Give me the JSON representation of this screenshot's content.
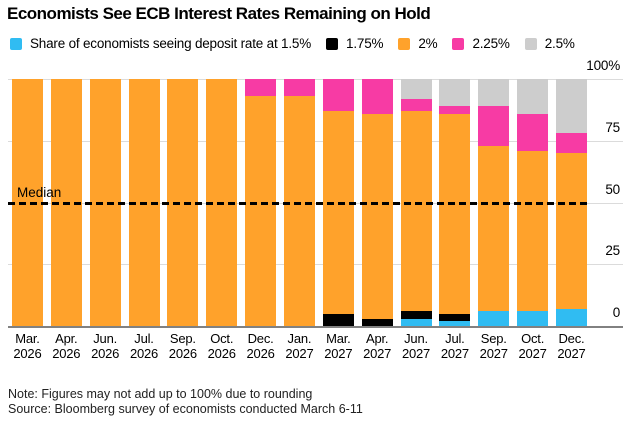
{
  "title": "Economists See ECB Interest Rates Remaining on Hold",
  "legend": {
    "items": [
      {
        "id": "rate-1-5",
        "label": "Share of economists seeing deposit rate at 1.5%",
        "color": "#30BCF2"
      },
      {
        "id": "rate-1-75",
        "label": "1.75%",
        "color": "#000000"
      },
      {
        "id": "rate-2",
        "label": "2%",
        "color": "#FFA22B"
      },
      {
        "id": "rate-2-25",
        "label": "2.25%",
        "color": "#F73BA4"
      },
      {
        "id": "rate-2-5",
        "label": "2.5%",
        "color": "#CDCDCD"
      }
    ]
  },
  "chart_data": {
    "type": "bar",
    "stacked": true,
    "unit": "percent share of economists",
    "title": "Economists See ECB Interest Rates Remaining on Hold",
    "categories": [
      {
        "month": "Mar.",
        "year": "2026"
      },
      {
        "month": "Apr.",
        "year": "2026"
      },
      {
        "month": "Jun.",
        "year": "2026"
      },
      {
        "month": "Jul.",
        "year": "2026"
      },
      {
        "month": "Sep.",
        "year": "2026"
      },
      {
        "month": "Oct.",
        "year": "2026"
      },
      {
        "month": "Dec.",
        "year": "2026"
      },
      {
        "month": "Jan.",
        "year": "2027"
      },
      {
        "month": "Mar.",
        "year": "2027"
      },
      {
        "month": "Apr.",
        "year": "2027"
      },
      {
        "month": "Jun.",
        "year": "2027"
      },
      {
        "month": "Jul.",
        "year": "2027"
      },
      {
        "month": "Sep.",
        "year": "2027"
      },
      {
        "month": "Oct.",
        "year": "2027"
      },
      {
        "month": "Dec.",
        "year": "2027"
      }
    ],
    "series": [
      {
        "name": "1.5%",
        "color": "#30BCF2",
        "values": [
          0,
          0,
          0,
          0,
          0,
          0,
          0,
          0,
          0,
          0,
          3,
          2,
          6,
          6,
          7
        ]
      },
      {
        "name": "1.75%",
        "color": "#000000",
        "values": [
          0,
          0,
          0,
          0,
          0,
          0,
          0,
          0,
          5,
          3,
          3,
          3,
          0,
          0,
          0
        ]
      },
      {
        "name": "2%",
        "color": "#FFA22B",
        "values": [
          100,
          100,
          100,
          100,
          100,
          100,
          93,
          93,
          82,
          83,
          81,
          81,
          67,
          65,
          63
        ]
      },
      {
        "name": "2.25%",
        "color": "#F73BA4",
        "values": [
          0,
          0,
          0,
          0,
          0,
          0,
          7,
          7,
          13,
          14,
          5,
          3,
          16,
          15,
          8
        ]
      },
      {
        "name": "2.5%",
        "color": "#CDCDCD",
        "values": [
          0,
          0,
          0,
          0,
          0,
          0,
          0,
          0,
          0,
          0,
          8,
          11,
          11,
          14,
          22
        ]
      }
    ],
    "stack_order_bottom_to_top": [
      "1.5%",
      "1.75%",
      "2%",
      "1.75%-none",
      "2.25%",
      "2.5%"
    ],
    "y_axis": {
      "range": [
        0,
        100
      ],
      "ticks": [
        {
          "label": "100%",
          "value": 100
        },
        {
          "label": "75",
          "value": 75
        },
        {
          "label": "50",
          "value": 50
        },
        {
          "label": "25",
          "value": 25
        },
        {
          "label": "0",
          "value": 0
        }
      ]
    },
    "median_annotation": {
      "label": "Median",
      "value": 50,
      "style": "dashed"
    },
    "grid": true,
    "legend_position": "top"
  },
  "note": "Note: Figures may not add up to 100% due to rounding",
  "source": "Source: Bloomberg survey of economists conducted March 6-11",
  "colors": {
    "background": "#ffffff",
    "gridline": "#dbdbdb",
    "axis": "#818181",
    "text": "#000000"
  }
}
